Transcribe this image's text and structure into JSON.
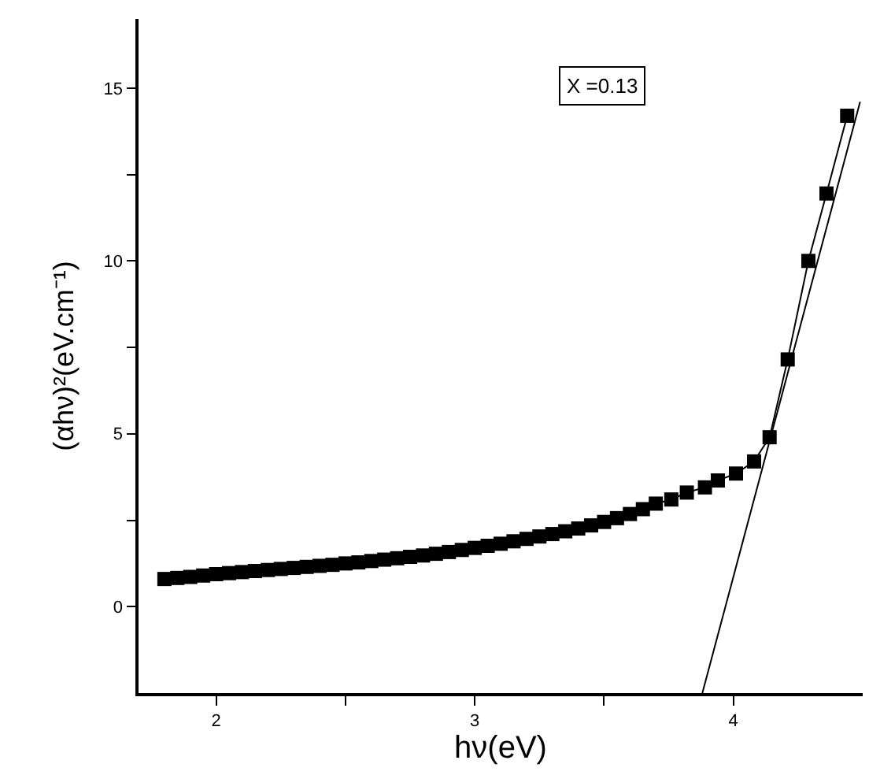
{
  "chart_data": {
    "type": "line",
    "xlabel": "hν(eV)",
    "ylabel": "(αhν)²(eV.cm⁻¹)",
    "annotations": [
      "X =0.13"
    ],
    "xlim": [
      1.7,
      4.5
    ],
    "ylim": [
      -2.5,
      17
    ],
    "xticks": [
      2,
      {
        "value": 2.5,
        "label": null
      },
      3,
      {
        "value": 3.5,
        "label": null
      },
      4
    ],
    "yticks": [
      0,
      {
        "value": 2.5,
        "label": null
      },
      5,
      {
        "value": 7.5,
        "label": null
      },
      10,
      {
        "value": 12.5,
        "label": null
      },
      15
    ],
    "grid": false,
    "line_style": "solid",
    "series": [
      {
        "color": "#000000",
        "marker": "square",
        "x": [
          1.8,
          1.85,
          1.9,
          1.95,
          2.0,
          2.05,
          2.1,
          2.15,
          2.2,
          2.25,
          2.3,
          2.35,
          2.4,
          2.45,
          2.5,
          2.55,
          2.6,
          2.65,
          2.7,
          2.75,
          2.8,
          2.85,
          2.9,
          2.95,
          3.0,
          3.05,
          3.1,
          3.15,
          3.2,
          3.25,
          3.3,
          3.35,
          3.4,
          3.45,
          3.5,
          3.55,
          3.6,
          3.65,
          3.7,
          3.76,
          3.82,
          3.89,
          3.94,
          4.01,
          4.08,
          4.14,
          4.21,
          4.29,
          4.36,
          4.44
        ],
        "values": [
          0.8,
          0.83,
          0.86,
          0.9,
          0.94,
          0.97,
          1.0,
          1.03,
          1.06,
          1.09,
          1.12,
          1.15,
          1.18,
          1.21,
          1.25,
          1.28,
          1.32,
          1.36,
          1.4,
          1.44,
          1.48,
          1.53,
          1.58,
          1.64,
          1.7,
          1.76,
          1.82,
          1.89,
          1.96,
          2.03,
          2.1,
          2.18,
          2.26,
          2.35,
          2.45,
          2.56,
          2.68,
          2.82,
          2.98,
          3.1,
          3.3,
          3.45,
          3.65,
          3.85,
          4.2,
          4.9,
          7.15,
          10.0,
          11.95,
          14.2
        ]
      },
      {
        "color": "#000000",
        "marker": "none",
        "x": [
          3.88,
          4.49
        ],
        "values": [
          -2.5,
          14.6
        ]
      }
    ]
  }
}
